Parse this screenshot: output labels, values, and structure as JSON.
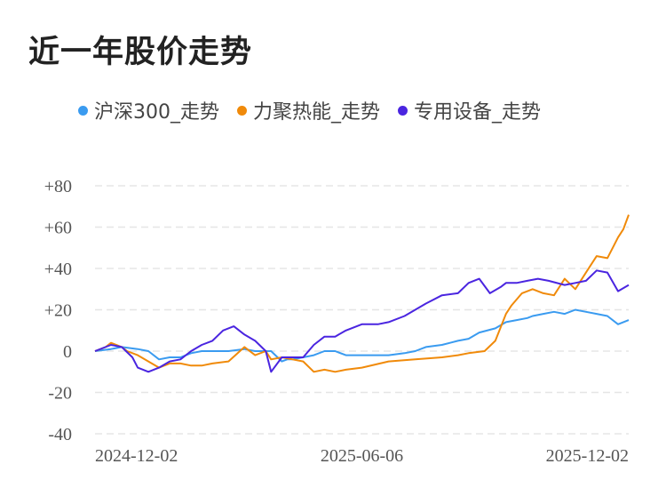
{
  "page_title": "近一年股价走势",
  "colors": {
    "hs300": "#3a9bf0",
    "lijuredeneng": "#f08a0a",
    "zhuanyongshebei": "#4a25e0",
    "grid": "#e5e5e5"
  },
  "chart_data": {
    "type": "line",
    "title": "近一年股价走势",
    "xlabel": "",
    "ylabel": "",
    "ylim": [
      -40,
      80
    ],
    "y_ticks": [
      80,
      60,
      40,
      20,
      0,
      -20,
      -40
    ],
    "y_tick_labels": [
      "+80",
      "+60",
      "+40",
      "+20",
      "0",
      "-20",
      "-40"
    ],
    "x_tick_labels": [
      "2024-12-02",
      "2025-06-06",
      "2025-12-02"
    ],
    "x_range": [
      0,
      100
    ],
    "x_tick_positions": [
      0,
      50,
      100
    ],
    "grid": true,
    "legend_position": "top-left",
    "series": [
      {
        "name": "沪深300_走势",
        "color_key": "hs300",
        "x": [
          0,
          3,
          5,
          8,
          10,
          12,
          14,
          16,
          18,
          20,
          22,
          25,
          28,
          30,
          33,
          35,
          36,
          37,
          39,
          41,
          43,
          45,
          47,
          50,
          55,
          58,
          60,
          62,
          65,
          68,
          70,
          72,
          75,
          77,
          79,
          81,
          82,
          84,
          86,
          88,
          90,
          92,
          94,
          96,
          98,
          100
        ],
        "y": [
          0,
          1,
          2,
          1,
          0,
          -4,
          -3,
          -3,
          -1,
          0,
          0,
          0,
          1,
          0,
          0,
          -5,
          -4,
          -4,
          -3,
          -2,
          0,
          0,
          -2,
          -2,
          -2,
          -1,
          0,
          2,
          3,
          5,
          6,
          9,
          11,
          14,
          15,
          16,
          17,
          18,
          19,
          18,
          20,
          19,
          18,
          17,
          13,
          15
        ]
      },
      {
        "name": "力聚热能_走势",
        "color_key": "lijuredeneng",
        "x": [
          0,
          2,
          3,
          5,
          6,
          8,
          10,
          12,
          14,
          16,
          18,
          20,
          22,
          25,
          28,
          30,
          32,
          33,
          35,
          37,
          39,
          41,
          43,
          45,
          47,
          50,
          55,
          60,
          65,
          68,
          70,
          73,
          75,
          77,
          78,
          79,
          80,
          82,
          84,
          86,
          88,
          90,
          92,
          94,
          96,
          97,
          98,
          99,
          100
        ],
        "y": [
          0,
          2,
          4,
          2,
          0,
          -2,
          -5,
          -8,
          -6,
          -6,
          -7,
          -7,
          -6,
          -5,
          2,
          -2,
          0,
          -4,
          -3,
          -4,
          -5,
          -10,
          -9,
          -10,
          -9,
          -8,
          -5,
          -4,
          -3,
          -2,
          -1,
          0,
          5,
          18,
          22,
          25,
          28,
          30,
          28,
          27,
          35,
          30,
          38,
          46,
          45,
          50,
          55,
          59,
          66
        ]
      },
      {
        "name": "专用设备_走势",
        "color_key": "zhuanyongshebei",
        "x": [
          0,
          3,
          5,
          7,
          8,
          10,
          12,
          14,
          16,
          18,
          20,
          22,
          24,
          26,
          28,
          30,
          32,
          33,
          35,
          37,
          39,
          41,
          43,
          45,
          47,
          50,
          53,
          55,
          58,
          60,
          62,
          65,
          68,
          70,
          72,
          74,
          76,
          77,
          79,
          81,
          83,
          85,
          88,
          90,
          92,
          94,
          96,
          98,
          100
        ],
        "y": [
          0,
          3,
          2,
          -3,
          -8,
          -10,
          -8,
          -5,
          -4,
          0,
          3,
          5,
          10,
          12,
          8,
          5,
          0,
          -10,
          -3,
          -3,
          -3,
          3,
          7,
          7,
          10,
          13,
          13,
          14,
          17,
          20,
          23,
          27,
          28,
          33,
          35,
          28,
          31,
          33,
          33,
          34,
          35,
          34,
          32,
          33,
          34,
          39,
          38,
          29,
          32
        ]
      }
    ]
  }
}
